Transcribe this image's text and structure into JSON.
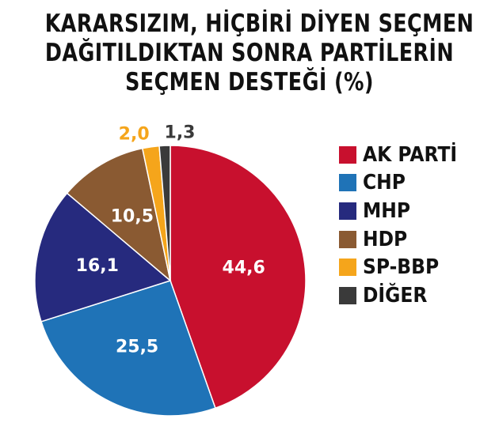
{
  "chart_data": {
    "type": "pie",
    "title": [
      "KARARSIZIM, HİÇBİRİ DİYEN SEÇMEN",
      "DAĞITILDIKTAN SONRA PARTİLERİN",
      "SEÇMEN DESTEĞİ (%)"
    ],
    "slices": [
      {
        "label": "AK PARTİ",
        "value": 44.6,
        "value_label": "44,6",
        "color": "#c8102e",
        "label_color": "#ffffff"
      },
      {
        "label": "CHP",
        "value": 25.5,
        "value_label": "25,5",
        "color": "#1f73b7",
        "label_color": "#ffffff"
      },
      {
        "label": "MHP",
        "value": 16.1,
        "value_label": "16,1",
        "color": "#262a7e",
        "label_color": "#ffffff"
      },
      {
        "label": "HDP",
        "value": 10.5,
        "value_label": "10,5",
        "color": "#8a5a32",
        "label_color": "#ffffff"
      },
      {
        "label": "SP-BBP",
        "value": 2.0,
        "value_label": "2,0",
        "color": "#f5a51b",
        "label_color": "#f5a51b"
      },
      {
        "label": "DİĞER",
        "value": 1.3,
        "value_label": "1,3",
        "color": "#3a3a3a",
        "label_color": "#3a3a3a"
      }
    ],
    "start_angle_deg": 0,
    "direction": "clockwise",
    "legend_position": "right"
  }
}
